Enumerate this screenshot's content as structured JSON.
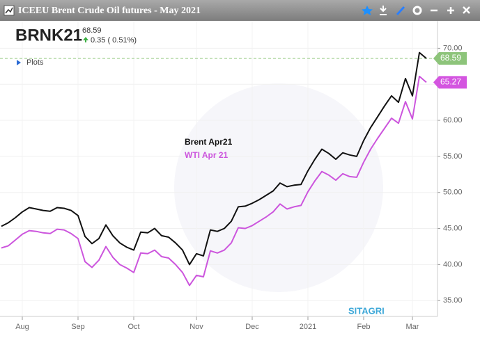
{
  "header": {
    "window_title": "ICEEU Brent Crude Oil futures - May 2021",
    "symbol": "BRNK21",
    "change": "0.35 ( 0.51%)",
    "plots": "Plots",
    "watermark": "SITAGRI"
  },
  "chart_data": {
    "type": "line",
    "series": [
      {
        "name": "Brent Apr21",
        "color": "#111111",
        "values": [
          45.3,
          45.8,
          46.5,
          47.3,
          47.9,
          47.7,
          47.5,
          47.4,
          47.9,
          47.8,
          47.5,
          46.8,
          43.9,
          42.9,
          43.6,
          45.5,
          44.0,
          43.0,
          42.4,
          42.0,
          44.5,
          44.4,
          45.0,
          44.0,
          43.8,
          43.0,
          42.0,
          40.0,
          41.5,
          41.2,
          44.8,
          44.6,
          45.0,
          46.0,
          48.0,
          48.1,
          48.5,
          49.0,
          49.6,
          50.2,
          51.3,
          50.8,
          51.0,
          51.1,
          53.0,
          54.6,
          56.0,
          55.4,
          54.6,
          55.5,
          55.2,
          55.0,
          57.2,
          59.0,
          60.5,
          62.0,
          63.4,
          62.5,
          65.8,
          63.4,
          69.4,
          68.59
        ]
      },
      {
        "name": "WTI Apr 21",
        "color": "#cc55dd",
        "values": [
          42.3,
          42.6,
          43.4,
          44.2,
          44.7,
          44.6,
          44.4,
          44.3,
          44.9,
          44.8,
          44.3,
          43.6,
          40.4,
          39.6,
          40.6,
          42.5,
          41.0,
          40.0,
          39.5,
          38.9,
          41.6,
          41.5,
          42.0,
          41.1,
          40.9,
          40.0,
          38.9,
          37.1,
          38.5,
          38.3,
          41.9,
          41.6,
          42.0,
          43.0,
          45.1,
          45.0,
          45.4,
          46.0,
          46.6,
          47.3,
          48.4,
          47.7,
          48.0,
          48.2,
          50.1,
          51.6,
          52.9,
          52.4,
          51.7,
          52.6,
          52.2,
          52.1,
          54.2,
          56.0,
          57.5,
          58.9,
          60.3,
          59.6,
          62.6,
          60.2,
          66.1,
          65.27
        ]
      }
    ],
    "xlim": [
      0,
      61
    ],
    "xticks": [
      {
        "value": 3,
        "label": "Aug"
      },
      {
        "value": 11,
        "label": "Sep"
      },
      {
        "value": 19,
        "label": "Oct"
      },
      {
        "value": 28,
        "label": "Nov"
      },
      {
        "value": 36,
        "label": "Dec"
      },
      {
        "value": 44,
        "label": "2021"
      },
      {
        "value": 52,
        "label": "Feb"
      },
      {
        "value": 59,
        "label": "Mar"
      }
    ],
    "ylim": [
      32.8,
      73.8
    ],
    "yticks": [
      {
        "value": 35,
        "label": "35.00"
      },
      {
        "value": 40,
        "label": "40.00"
      },
      {
        "value": 45,
        "label": "45.00"
      },
      {
        "value": 50,
        "label": "50.00"
      },
      {
        "value": 55,
        "label": "55.00"
      },
      {
        "value": 60,
        "label": "60.00"
      },
      {
        "value": 65,
        "label": "65.00"
      },
      {
        "value": 70,
        "label": "70.00"
      }
    ],
    "grid": true
  }
}
